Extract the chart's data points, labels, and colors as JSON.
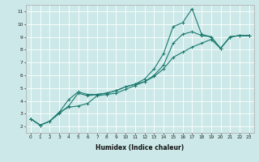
{
  "title": "",
  "xlabel": "Humidex (Indice chaleur)",
  "ylabel": "",
  "bg_color": "#cce8e8",
  "grid_color": "#ffffff",
  "line_color": "#1a7a6e",
  "xlim": [
    -0.5,
    23.5
  ],
  "ylim": [
    1.5,
    11.5
  ],
  "xticks": [
    0,
    1,
    2,
    3,
    4,
    5,
    6,
    7,
    8,
    9,
    10,
    11,
    12,
    13,
    14,
    15,
    16,
    17,
    18,
    19,
    20,
    21,
    22,
    23
  ],
  "yticks": [
    2,
    3,
    4,
    5,
    6,
    7,
    8,
    9,
    10,
    11
  ],
  "series1_x": [
    0,
    1,
    2,
    3,
    4,
    5,
    6,
    7,
    8,
    9,
    10,
    11,
    12,
    13,
    14,
    15,
    16,
    17,
    18,
    19,
    20,
    21,
    22,
    23
  ],
  "series1_y": [
    2.6,
    2.1,
    2.4,
    3.1,
    4.1,
    4.7,
    4.5,
    4.5,
    4.6,
    4.8,
    5.1,
    5.3,
    5.7,
    6.5,
    7.7,
    9.8,
    10.1,
    11.2,
    9.2,
    9.0,
    8.1,
    9.0,
    9.1,
    9.1
  ],
  "series2_x": [
    0,
    1,
    2,
    3,
    4,
    5,
    6,
    7,
    8,
    9,
    10,
    11,
    12,
    13,
    14,
    15,
    16,
    17,
    18,
    19,
    20,
    21,
    22,
    23
  ],
  "series2_y": [
    2.6,
    2.1,
    2.4,
    3.0,
    3.6,
    4.6,
    4.4,
    4.5,
    4.6,
    4.8,
    5.1,
    5.3,
    5.5,
    6.0,
    6.8,
    8.5,
    9.2,
    9.4,
    9.1,
    9.0,
    8.1,
    9.0,
    9.1,
    9.1
  ],
  "series3_x": [
    0,
    1,
    2,
    3,
    4,
    5,
    6,
    7,
    8,
    9,
    10,
    11,
    12,
    13,
    14,
    15,
    16,
    17,
    18,
    19,
    20,
    21,
    22,
    23
  ],
  "series3_y": [
    2.6,
    2.1,
    2.4,
    3.1,
    3.5,
    3.6,
    3.8,
    4.4,
    4.5,
    4.6,
    4.9,
    5.2,
    5.5,
    5.9,
    6.5,
    7.4,
    7.8,
    8.2,
    8.5,
    8.8,
    8.1,
    9.0,
    9.1,
    9.1
  ],
  "xlabel_fontsize": 5.5,
  "tick_fontsize": 4.2,
  "marker_size": 3.0,
  "line_width": 0.8
}
